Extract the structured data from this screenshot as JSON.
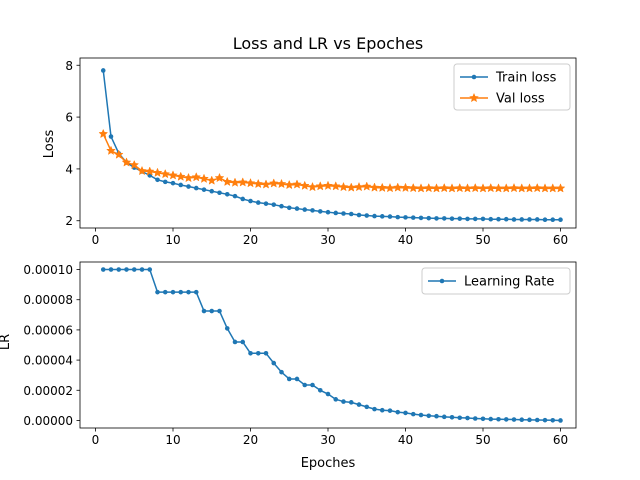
{
  "chart_data": [
    {
      "type": "line",
      "title": "Loss and LR vs Epoches",
      "xlabel": "",
      "ylabel": "Loss",
      "xlim": [
        -2,
        62
      ],
      "ylim": [
        1.72,
        8.28
      ],
      "xticks": [
        "0",
        "10",
        "20",
        "30",
        "40",
        "50",
        "60"
      ],
      "yticks": [
        "2",
        "4",
        "6",
        "8"
      ],
      "grid": false,
      "legend_position": "top-right",
      "x": [
        1,
        2,
        3,
        4,
        5,
        6,
        7,
        8,
        9,
        10,
        11,
        12,
        13,
        14,
        15,
        16,
        17,
        18,
        19,
        20,
        21,
        22,
        23,
        24,
        25,
        26,
        27,
        28,
        29,
        30,
        31,
        32,
        33,
        34,
        35,
        36,
        37,
        38,
        39,
        40,
        41,
        42,
        43,
        44,
        45,
        46,
        47,
        48,
        49,
        50,
        51,
        52,
        53,
        54,
        55,
        56,
        57,
        58,
        59,
        60
      ],
      "series": [
        {
          "name": "Train loss",
          "color": "#1f77b4",
          "marker": "circle",
          "values": [
            7.8,
            5.25,
            4.6,
            4.25,
            4.05,
            3.9,
            3.75,
            3.58,
            3.5,
            3.45,
            3.38,
            3.32,
            3.26,
            3.2,
            3.14,
            3.08,
            3.02,
            2.95,
            2.84,
            2.76,
            2.7,
            2.66,
            2.62,
            2.56,
            2.5,
            2.47,
            2.43,
            2.4,
            2.36,
            2.33,
            2.3,
            2.28,
            2.26,
            2.22,
            2.2,
            2.18,
            2.17,
            2.16,
            2.14,
            2.13,
            2.12,
            2.11,
            2.1,
            2.09,
            2.09,
            2.08,
            2.08,
            2.07,
            2.07,
            2.07,
            2.06,
            2.06,
            2.06,
            2.05,
            2.05,
            2.05,
            2.05,
            2.04,
            2.04,
            2.04
          ]
        },
        {
          "name": "Val loss",
          "color": "#ff7f0e",
          "marker": "star",
          "values": [
            5.35,
            4.7,
            4.55,
            4.25,
            4.15,
            3.92,
            3.9,
            3.85,
            3.8,
            3.75,
            3.7,
            3.65,
            3.68,
            3.62,
            3.55,
            3.65,
            3.5,
            3.47,
            3.48,
            3.45,
            3.42,
            3.4,
            3.44,
            3.42,
            3.38,
            3.4,
            3.35,
            3.3,
            3.33,
            3.35,
            3.33,
            3.3,
            3.28,
            3.3,
            3.32,
            3.28,
            3.27,
            3.26,
            3.28,
            3.27,
            3.26,
            3.25,
            3.26,
            3.25,
            3.26,
            3.25,
            3.26,
            3.25,
            3.26,
            3.25,
            3.26,
            3.25,
            3.25,
            3.26,
            3.25,
            3.25,
            3.26,
            3.25,
            3.25,
            3.25
          ]
        }
      ]
    },
    {
      "type": "line",
      "title": "",
      "xlabel": "Epoches",
      "ylabel": "LR",
      "xlim": [
        -2,
        62
      ],
      "ylim": [
        -5e-06,
        0.000105
      ],
      "xticks": [
        "0",
        "10",
        "20",
        "30",
        "40",
        "50",
        "60"
      ],
      "yticks": [
        "0.00000",
        "0.00002",
        "0.00004",
        "0.00006",
        "0.00008",
        "0.00010"
      ],
      "grid": false,
      "legend_position": "top-right",
      "x": [
        1,
        2,
        3,
        4,
        5,
        6,
        7,
        8,
        9,
        10,
        11,
        12,
        13,
        14,
        15,
        16,
        17,
        18,
        19,
        20,
        21,
        22,
        23,
        24,
        25,
        26,
        27,
        28,
        29,
        30,
        31,
        32,
        33,
        34,
        35,
        36,
        37,
        38,
        39,
        40,
        41,
        42,
        43,
        44,
        45,
        46,
        47,
        48,
        49,
        50,
        51,
        52,
        53,
        54,
        55,
        56,
        57,
        58,
        59,
        60
      ],
      "series": [
        {
          "name": "Learning Rate",
          "color": "#1f77b4",
          "marker": "circle",
          "values": [
            0.0001,
            0.0001,
            0.0001,
            0.0001,
            0.0001,
            0.0001,
            0.0001,
            8.5e-05,
            8.5e-05,
            8.5e-05,
            8.5e-05,
            8.5e-05,
            8.5e-05,
            7.25e-05,
            7.25e-05,
            7.25e-05,
            6.1e-05,
            5.2e-05,
            5.2e-05,
            4.45e-05,
            4.45e-05,
            4.45e-05,
            3.8e-05,
            3.2e-05,
            2.75e-05,
            2.75e-05,
            2.35e-05,
            2.35e-05,
            2e-05,
            1.75e-05,
            1.4e-05,
            1.25e-05,
            1.2e-05,
            1.05e-05,
            9e-06,
            7.5e-06,
            6.8e-06,
            6.5e-06,
            5.5e-06,
            5e-06,
            4.2e-06,
            3.6e-06,
            3.1e-06,
            2.8e-06,
            2.4e-06,
            2.1e-06,
            1.8e-06,
            1.6e-06,
            1.3e-06,
            1.1e-06,
            9e-07,
            8e-07,
            7e-07,
            6e-07,
            5e-07,
            4e-07,
            3e-07,
            2e-07,
            1e-07,
            0.0
          ]
        }
      ]
    }
  ]
}
